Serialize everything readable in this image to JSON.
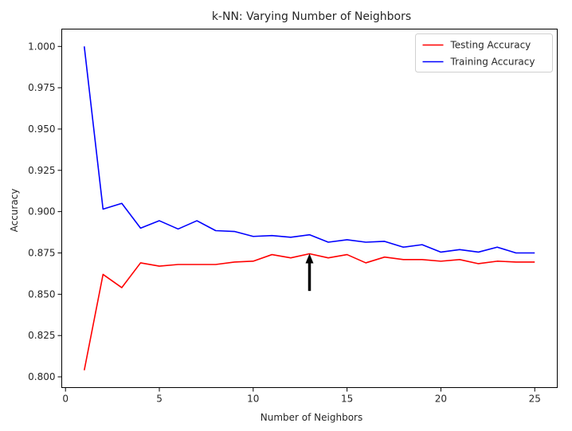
{
  "chart_data": {
    "type": "line",
    "title": "k-NN: Varying Number of Neighbors",
    "xlabel": "Number of Neighbors",
    "ylabel": "Accuracy",
    "xlim": [
      -0.2,
      26.2
    ],
    "ylim": [
      0.7935,
      1.0105
    ],
    "xticks": [
      0,
      5,
      10,
      15,
      20,
      25
    ],
    "yticks": [
      0.8,
      0.825,
      0.85,
      0.875,
      0.9,
      0.925,
      0.95,
      0.975,
      1.0
    ],
    "ytick_labels": [
      "0.800",
      "0.825",
      "0.850",
      "0.875",
      "0.900",
      "0.925",
      "0.950",
      "0.975",
      "1.000"
    ],
    "grid": false,
    "legend_position": "top-right",
    "x": [
      1,
      2,
      3,
      4,
      5,
      6,
      7,
      8,
      9,
      10,
      11,
      12,
      13,
      14,
      15,
      16,
      17,
      18,
      19,
      20,
      21,
      22,
      23,
      24,
      25
    ],
    "series": [
      {
        "name": "Testing Accuracy",
        "color": "#ff0000",
        "values": [
          0.804,
          0.862,
          0.854,
          0.869,
          0.867,
          0.868,
          0.868,
          0.868,
          0.8695,
          0.87,
          0.874,
          0.872,
          0.8745,
          0.872,
          0.874,
          0.869,
          0.8725,
          0.871,
          0.871,
          0.87,
          0.871,
          0.8685,
          0.87,
          0.8695,
          0.8695
        ]
      },
      {
        "name": "Training Accuracy",
        "color": "#0000ff",
        "values": [
          1.0,
          0.9015,
          0.905,
          0.89,
          0.8945,
          0.8895,
          0.8945,
          0.8885,
          0.888,
          0.885,
          0.8855,
          0.8845,
          0.886,
          0.8815,
          0.883,
          0.8815,
          0.882,
          0.8785,
          0.88,
          0.8755,
          0.877,
          0.8755,
          0.8785,
          0.875,
          0.875
        ]
      }
    ],
    "annotation": {
      "type": "arrow",
      "color": "#000000",
      "x": 13,
      "y_from": 0.852,
      "y_to": 0.8745
    }
  }
}
